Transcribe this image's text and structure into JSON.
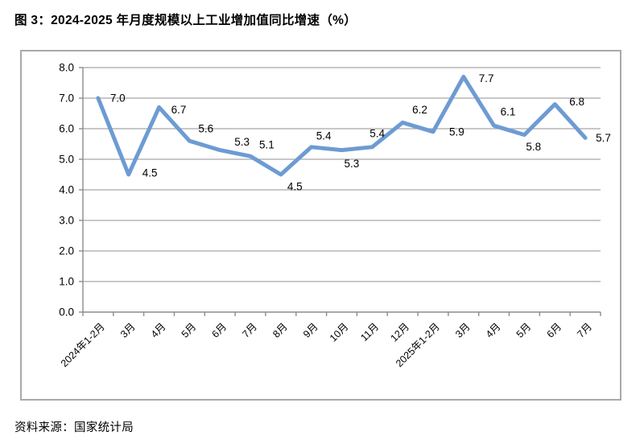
{
  "figure": {
    "title": "图 3：2024-2025 年月度规模以上工业增加值同比增速（%）",
    "source": "资料来源：国家统计局"
  },
  "chart_data": {
    "type": "line",
    "title": "",
    "xlabel": "",
    "ylabel": "",
    "categories": [
      "2024年1-2月",
      "3月",
      "4月",
      "5月",
      "6月",
      "7月",
      "8月",
      "9月",
      "10月",
      "11月",
      "12月",
      "2025年1-2月",
      "3月",
      "4月",
      "5月",
      "6月",
      "7月"
    ],
    "values": [
      7.0,
      4.5,
      6.7,
      5.6,
      5.3,
      5.1,
      4.5,
      5.4,
      5.3,
      5.4,
      6.2,
      5.9,
      7.7,
      6.1,
      5.8,
      6.8,
      5.7
    ],
    "data_labels": [
      "7.0",
      "4.5",
      "6.7",
      "5.6",
      "5.3",
      "5.1",
      "4.5",
      "5.4",
      "5.3",
      "5.4",
      "6.2",
      "5.9",
      "7.7",
      "6.1",
      "5.8",
      "6.8",
      "5.7"
    ],
    "ylim": [
      0.0,
      8.0
    ],
    "ytick_step": 1.0,
    "ytick_labels": [
      "0.0",
      "1.0",
      "2.0",
      "3.0",
      "4.0",
      "5.0",
      "6.0",
      "7.0",
      "8.0"
    ],
    "grid": true,
    "legend": "none",
    "x_label_rotation_deg": 45,
    "colors": {
      "line": "#6d9bd3",
      "gridline": "#a6a6a6",
      "axis": "#8c8c8c",
      "tick_label": "#000000",
      "data_label": "#000000",
      "box_border": "#a9a9a9"
    }
  }
}
